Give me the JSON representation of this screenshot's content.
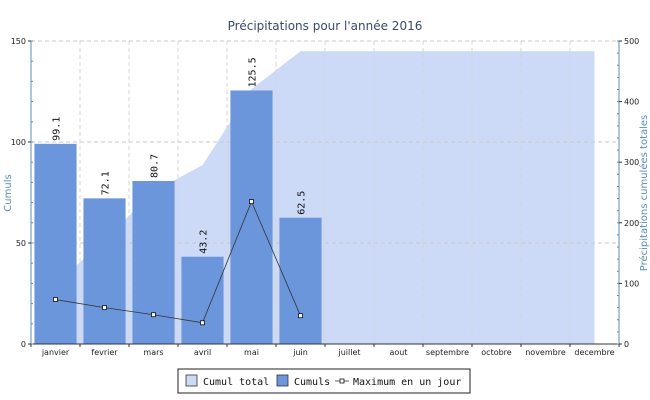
{
  "chart_data": {
    "type": "bar",
    "title": "Précipitations pour l'année 2016",
    "categories": [
      "janvier",
      "fevrier",
      "mars",
      "avril",
      "mai",
      "juin",
      "juillet",
      "aout",
      "septembre",
      "octobre",
      "novembre",
      "decembre"
    ],
    "ylabel_left": "Cumuls",
    "ylabel_right": "Précipitations cumulées totales",
    "ylim_left": [
      0,
      150
    ],
    "yticks_left": [
      0,
      50,
      100,
      150
    ],
    "ylim_right": [
      0,
      500
    ],
    "yticks_right": [
      0,
      100,
      200,
      300,
      400,
      500
    ],
    "grid": true,
    "legend_position": "bottom",
    "series": [
      {
        "name": "Cumul total",
        "type": "area",
        "axis": "right",
        "color": "#ccdaf7",
        "values": [
          99.1,
          171.2,
          251.9,
          295.1,
          420.6,
          483.1,
          483.1,
          483.1,
          483.1,
          483.1,
          483.1,
          483.1
        ]
      },
      {
        "name": "Cumuls",
        "type": "bar",
        "axis": "left",
        "color": "#6b96dc",
        "values": [
          99.1,
          72.1,
          80.7,
          43.2,
          125.5,
          62.5,
          null,
          null,
          null,
          null,
          null,
          null
        ],
        "labels": [
          "99.1",
          "72.1",
          "80.7",
          "43.2",
          "125.5",
          "62.5"
        ]
      },
      {
        "name": "Maximum en un jour",
        "type": "line",
        "axis": "left",
        "color": "#333333",
        "values": [
          22,
          18,
          14.5,
          10.5,
          70.5,
          14,
          null,
          null,
          null,
          null,
          null,
          null
        ]
      }
    ]
  }
}
